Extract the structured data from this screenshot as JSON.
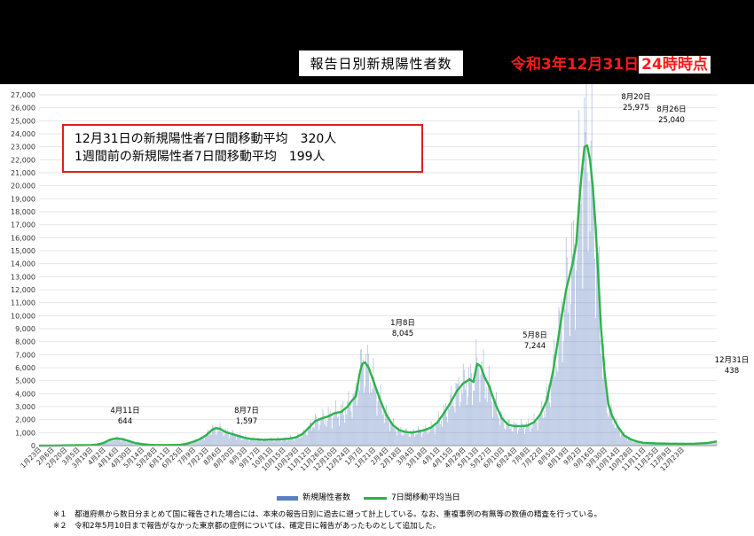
{
  "title": "報告日別新規陽性者数",
  "date_stamp": {
    "prefix": "令和3年12月31日",
    "highlight": "24時時点"
  },
  "summary": [
    "12月31日の新規陽性者7日間移動平均　320人",
    "1週間前の新規陽性者7日間移動平均　199人"
  ],
  "notes": [
    "※１　都道府県から数日分まとめて国に報告された場合には、本来の報告日別に過去に遡って計上している。なお、重複事例の有無等の数値の精査を行っている。",
    "※２　令和2年5月10日まで報告がなかった東京都の症例については、確定日に報告があったものとして追加した。"
  ],
  "colors": {
    "bar": "#5b7fbf",
    "line": "#2db34a",
    "accent_red": "#ff1a1a"
  },
  "chart_data": {
    "type": "bar",
    "ylim": [
      0,
      27000
    ],
    "ytick_labels": [
      "0",
      "1,000",
      "2,000",
      "3,000",
      "4,000",
      "5,000",
      "6,000",
      "7,000",
      "8,000",
      "9,000",
      "10,000",
      "11,000",
      "12,000",
      "13,000",
      "14,000",
      "15,000",
      "16,000",
      "17,000",
      "18,000",
      "19,000",
      "20,000",
      "21,000",
      "22,000",
      "23,000",
      "24,000",
      "25,000",
      "26,000",
      "27,000"
    ],
    "xtick_labels": [
      "1月23日",
      "2月6日",
      "2月20日",
      "3月5日",
      "3月19日",
      "4月2日",
      "4月16日",
      "4月30日",
      "5月14日",
      "5月28日",
      "6月11日",
      "6月25日",
      "7月9日",
      "7月23日",
      "8月6日",
      "8月20日",
      "9月3日",
      "9月17日",
      "10月1日",
      "10月15日",
      "10月29日",
      "11月12日",
      "11月26日",
      "12月10日",
      "12月24日",
      "1月7日",
      "1月21日",
      "2月4日",
      "2月18日",
      "3月4日",
      "3月18日",
      "4月1日",
      "4月15日",
      "4月29日",
      "5月13日",
      "5月27日",
      "6月10日",
      "6月24日",
      "7月8日",
      "7月22日",
      "8月5日",
      "8月19日",
      "9月2日",
      "9月16日",
      "9月30日",
      "10月14日",
      "10月28日",
      "11月11日",
      "11月25日",
      "12月9日",
      "12月23日"
    ],
    "series": [
      {
        "name": "新規陽性者数",
        "type": "bar"
      },
      {
        "name": "7日間移動平均当日",
        "type": "line"
      }
    ],
    "moving_average": [
      [
        0,
        0
      ],
      [
        14,
        10
      ],
      [
        28,
        20
      ],
      [
        42,
        35
      ],
      [
        56,
        50
      ],
      [
        63,
        80
      ],
      [
        70,
        200
      ],
      [
        77,
        450
      ],
      [
        84,
        560
      ],
      [
        91,
        500
      ],
      [
        98,
        350
      ],
      [
        105,
        200
      ],
      [
        112,
        120
      ],
      [
        119,
        70
      ],
      [
        126,
        50
      ],
      [
        133,
        45
      ],
      [
        140,
        50
      ],
      [
        154,
        60
      ],
      [
        161,
        150
      ],
      [
        168,
        300
      ],
      [
        175,
        500
      ],
      [
        182,
        800
      ],
      [
        189,
        1250
      ],
      [
        193,
        1340
      ],
      [
        197,
        1300
      ],
      [
        203,
        1050
      ],
      [
        210,
        900
      ],
      [
        217,
        750
      ],
      [
        224,
        600
      ],
      [
        231,
        520
      ],
      [
        238,
        480
      ],
      [
        245,
        450
      ],
      [
        252,
        470
      ],
      [
        259,
        480
      ],
      [
        266,
        500
      ],
      [
        273,
        550
      ],
      [
        280,
        650
      ],
      [
        287,
        900
      ],
      [
        294,
        1400
      ],
      [
        301,
        1900
      ],
      [
        308,
        2100
      ],
      [
        315,
        2250
      ],
      [
        322,
        2500
      ],
      [
        329,
        2600
      ],
      [
        336,
        3000
      ],
      [
        340,
        3400
      ],
      [
        345,
        3800
      ],
      [
        349,
        5500
      ],
      [
        352,
        6300
      ],
      [
        355,
        6400
      ],
      [
        359,
        6000
      ],
      [
        364,
        5000
      ],
      [
        371,
        3600
      ],
      [
        378,
        2400
      ],
      [
        385,
        1600
      ],
      [
        392,
        1200
      ],
      [
        399,
        1050
      ],
      [
        406,
        1000
      ],
      [
        413,
        1100
      ],
      [
        420,
        1200
      ],
      [
        427,
        1400
      ],
      [
        434,
        1800
      ],
      [
        441,
        2500
      ],
      [
        448,
        3300
      ],
      [
        455,
        4200
      ],
      [
        462,
        4800
      ],
      [
        469,
        5100
      ],
      [
        473,
        4900
      ],
      [
        477,
        6300
      ],
      [
        481,
        6100
      ],
      [
        485,
        5300
      ],
      [
        490,
        4600
      ],
      [
        497,
        3200
      ],
      [
        504,
        2100
      ],
      [
        511,
        1600
      ],
      [
        518,
        1500
      ],
      [
        525,
        1500
      ],
      [
        532,
        1550
      ],
      [
        539,
        1800
      ],
      [
        546,
        2400
      ],
      [
        553,
        3500
      ],
      [
        560,
        5800
      ],
      [
        567,
        9000
      ],
      [
        574,
        12000
      ],
      [
        581,
        14000
      ],
      [
        585,
        15500
      ],
      [
        588,
        18500
      ],
      [
        591,
        21000
      ],
      [
        594,
        23000
      ],
      [
        597,
        23100
      ],
      [
        600,
        22000
      ],
      [
        603,
        20000
      ],
      [
        606,
        17000
      ],
      [
        609,
        13000
      ],
      [
        612,
        9000
      ],
      [
        616,
        5500
      ],
      [
        620,
        3200
      ],
      [
        624,
        2300
      ],
      [
        630,
        1500
      ],
      [
        637,
        800
      ],
      [
        644,
        500
      ],
      [
        651,
        320
      ],
      [
        658,
        220
      ],
      [
        672,
        170
      ],
      [
        686,
        150
      ],
      [
        700,
        140
      ],
      [
        714,
        150
      ],
      [
        728,
        200
      ],
      [
        734,
        280
      ],
      [
        738,
        330
      ]
    ],
    "annotations": [
      {
        "date": "4月11日",
        "value": "644"
      },
      {
        "date": "8月7日",
        "value": "1,597"
      },
      {
        "date": "1月8日",
        "value": "8,045"
      },
      {
        "date": "5月8日",
        "value": "7,244"
      },
      {
        "date": "8月20日",
        "value": "25,975"
      },
      {
        "date": "8月26日",
        "value": "25,040"
      },
      {
        "date": "12月31日",
        "value": "438"
      }
    ]
  }
}
